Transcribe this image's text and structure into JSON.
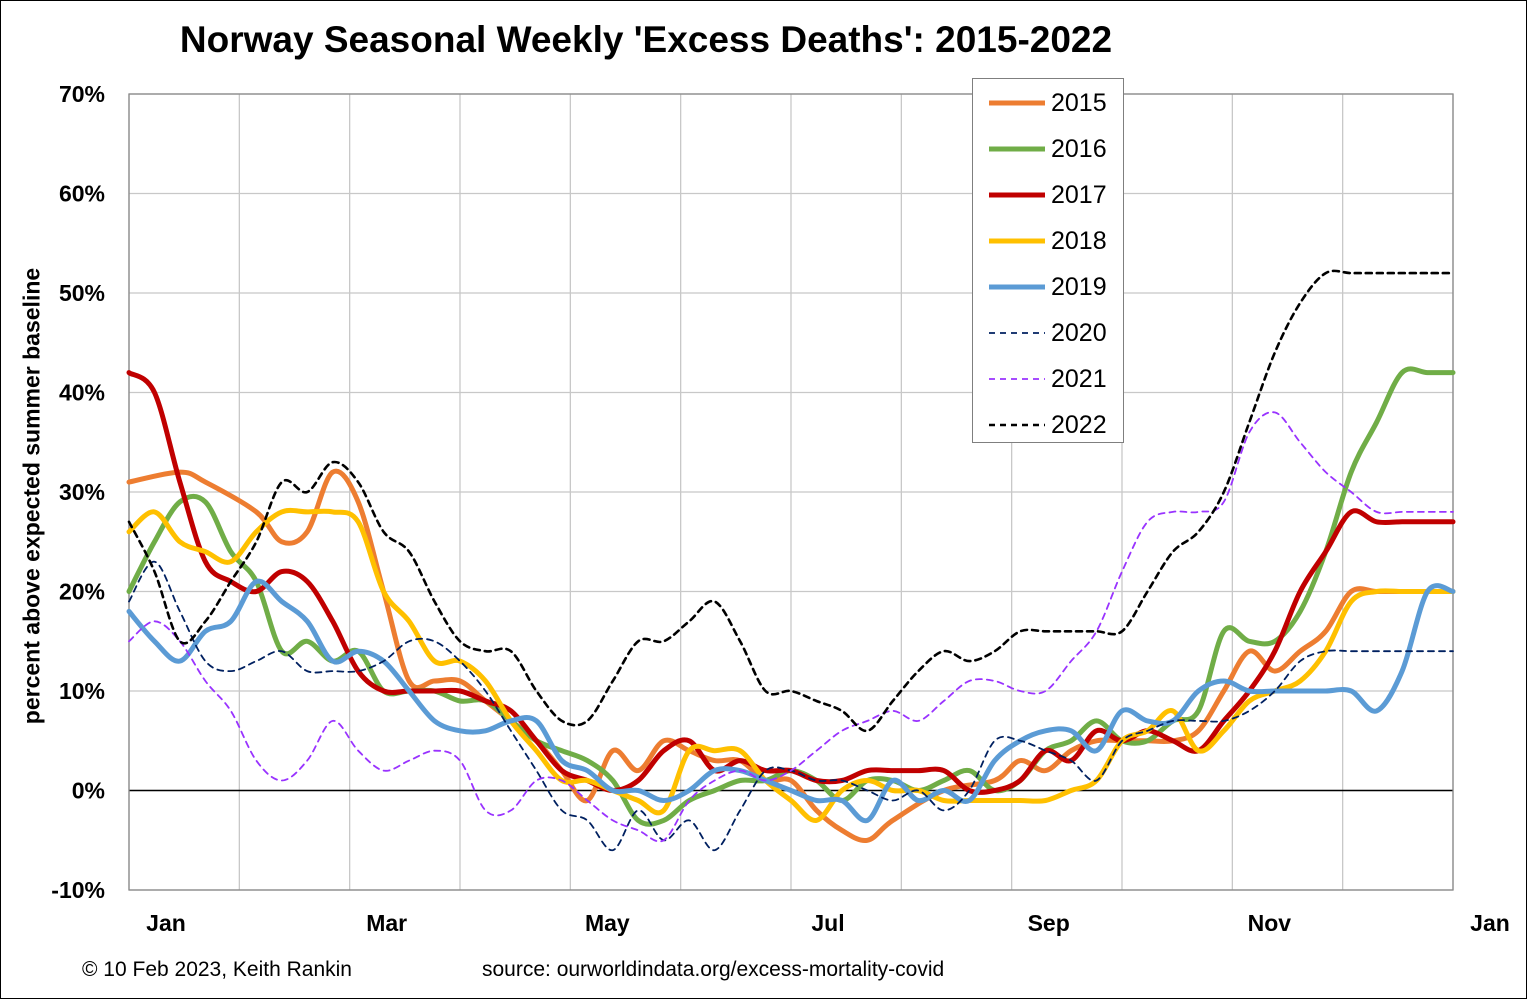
{
  "chart_data": {
    "type": "line",
    "title": "Norway Seasonal Weekly 'Excess Deaths': 2015-2022",
    "xlabel": "",
    "ylabel": "percent above expected summer baseline",
    "x_ticks": [
      "Jan",
      "Mar",
      "May",
      "Jul",
      "Sep",
      "Nov",
      "Jan"
    ],
    "x_unit": "week of year",
    "xlim": [
      1,
      53
    ],
    "ylim": [
      -10,
      70
    ],
    "y_ticks": [
      "-10%",
      "0%",
      "10%",
      "20%",
      "30%",
      "40%",
      "50%",
      "60%",
      "70%"
    ],
    "grid": true,
    "legend_position": "top-right",
    "series": [
      {
        "name": "2015",
        "color": "#ED7D31",
        "style": "solid",
        "x": [
          1,
          3,
          4,
          6,
          7,
          8,
          9,
          10,
          11,
          12,
          13,
          14,
          15,
          16,
          17,
          18,
          19,
          20,
          21,
          22,
          23,
          24,
          25,
          26,
          27,
          28,
          29,
          30,
          31,
          33,
          35,
          36,
          37,
          38,
          39,
          40,
          41,
          42,
          43,
          44,
          45,
          46,
          47,
          48,
          49,
          50,
          51,
          52,
          53
        ],
        "y": [
          31,
          32,
          31,
          28,
          25,
          26,
          32,
          29,
          20,
          11,
          11,
          11,
          9,
          7,
          5,
          2,
          -1,
          4,
          2,
          5,
          4,
          3,
          3,
          1,
          1,
          -2,
          -4,
          -5,
          -3,
          0,
          1,
          3,
          2,
          4,
          5,
          5,
          5,
          5,
          6,
          10,
          14,
          12,
          14,
          16,
          20,
          20,
          20,
          20,
          20
        ]
      },
      {
        "name": "2016",
        "color": "#70AD47",
        "style": "solid",
        "x": [
          1,
          2,
          3,
          4,
          5,
          6,
          7,
          8,
          9,
          10,
          11,
          12,
          13,
          14,
          15,
          16,
          17,
          18,
          19,
          20,
          21,
          22,
          23,
          24,
          25,
          26,
          27,
          28,
          29,
          30,
          31,
          32,
          33,
          34,
          35,
          36,
          37,
          38,
          39,
          40,
          41,
          42,
          43,
          44,
          45,
          46,
          47,
          48,
          49,
          50,
          51,
          52,
          53
        ],
        "y": [
          20,
          25,
          29,
          29,
          24,
          21,
          14,
          15,
          13,
          14,
          10,
          10,
          10,
          9,
          9,
          7,
          5,
          4,
          3,
          1,
          -3,
          -3,
          -1,
          0,
          1,
          1,
          2,
          1,
          -1,
          1,
          1,
          0,
          1,
          2,
          0,
          1,
          4,
          5,
          7,
          5,
          5,
          7,
          8,
          16,
          15,
          15,
          18,
          24,
          32,
          37,
          42,
          42,
          42
        ]
      },
      {
        "name": "2017",
        "color": "#C00000",
        "style": "solid",
        "x": [
          1,
          2,
          3,
          4,
          5,
          6,
          7,
          8,
          9,
          10,
          11,
          12,
          13,
          14,
          15,
          16,
          17,
          18,
          19,
          20,
          21,
          22,
          23,
          24,
          25,
          26,
          27,
          28,
          29,
          30,
          31,
          32,
          33,
          34,
          35,
          36,
          37,
          38,
          39,
          40,
          41,
          42,
          43,
          44,
          45,
          46,
          47,
          48,
          49,
          50,
          51,
          52,
          53
        ],
        "y": [
          42,
          40,
          31,
          23,
          21,
          20,
          22,
          21,
          17,
          12,
          10,
          10,
          10,
          10,
          9,
          8,
          5,
          2,
          1,
          0,
          1,
          4,
          5,
          2,
          3,
          2,
          2,
          1,
          1,
          2,
          2,
          2,
          2,
          0,
          0,
          1,
          4,
          3,
          6,
          5,
          6,
          5,
          4,
          7,
          10,
          14,
          20,
          24,
          28,
          27,
          27,
          27,
          27
        ]
      },
      {
        "name": "2018",
        "color": "#FFC000",
        "style": "solid",
        "x": [
          1,
          2,
          3,
          4,
          5,
          6,
          7,
          8,
          9,
          10,
          11,
          12,
          13,
          14,
          15,
          16,
          17,
          18,
          19,
          20,
          21,
          22,
          23,
          24,
          25,
          26,
          27,
          28,
          29,
          30,
          31,
          32,
          33,
          34,
          35,
          36,
          37,
          38,
          39,
          40,
          41,
          42,
          43,
          44,
          45,
          46,
          47,
          48,
          49,
          50,
          51,
          52,
          53
        ],
        "y": [
          26,
          28,
          25,
          24,
          23,
          26,
          28,
          28,
          28,
          27,
          20,
          17,
          13,
          13,
          11,
          7,
          4,
          1,
          1,
          0,
          -1,
          -2,
          4,
          4,
          4,
          1,
          -1,
          -3,
          0,
          1,
          0,
          0,
          -1,
          -1,
          -1,
          -1,
          -1,
          0,
          1,
          5,
          6,
          8,
          4,
          6,
          9,
          10,
          11,
          14,
          19,
          20,
          20,
          20,
          20
        ]
      },
      {
        "name": "2019",
        "color": "#5B9BD5",
        "style": "solid",
        "x": [
          1,
          2,
          3,
          4,
          5,
          6,
          7,
          8,
          9,
          10,
          11,
          12,
          13,
          14,
          15,
          16,
          17,
          18,
          19,
          20,
          21,
          22,
          23,
          24,
          25,
          26,
          27,
          28,
          29,
          30,
          31,
          32,
          33,
          34,
          35,
          36,
          37,
          38,
          39,
          40,
          41,
          42,
          43,
          44,
          45,
          46,
          47,
          48,
          49,
          50,
          51,
          52,
          53
        ],
        "y": [
          18,
          15,
          13,
          16,
          17,
          21,
          19,
          17,
          13,
          14,
          13,
          10,
          7,
          6,
          6,
          7,
          7,
          3,
          2,
          0,
          0,
          -1,
          0,
          2,
          2,
          1,
          0,
          -1,
          -1,
          -3,
          1,
          -1,
          0,
          -1,
          3,
          5,
          6,
          6,
          4,
          8,
          7,
          7,
          10,
          11,
          10,
          10,
          10,
          10,
          10,
          8,
          12,
          20,
          20
        ]
      },
      {
        "name": "2020",
        "color": "#002060",
        "style": "dashed",
        "x": [
          1,
          2,
          3,
          4,
          5,
          6,
          7,
          8,
          9,
          10,
          11,
          12,
          13,
          14,
          15,
          16,
          17,
          18,
          19,
          20,
          21,
          22,
          23,
          24,
          25,
          26,
          27,
          28,
          29,
          30,
          31,
          32,
          33,
          34,
          35,
          36,
          37,
          38,
          39,
          40,
          41,
          42,
          43,
          44,
          45,
          46,
          47,
          48,
          49,
          50,
          51,
          52,
          53
        ],
        "y": [
          19,
          23,
          18,
          13,
          12,
          13,
          14,
          12,
          12,
          12,
          13,
          15,
          15,
          13,
          10,
          6,
          2,
          -2,
          -3,
          -6,
          -2,
          -5,
          -3,
          -6,
          -2,
          2,
          2,
          1,
          1,
          0,
          -1,
          0,
          -2,
          0,
          5,
          5,
          4,
          3,
          1,
          5,
          6,
          7,
          7,
          7,
          8,
          10,
          13,
          14,
          14,
          14,
          14,
          14,
          14
        ]
      },
      {
        "name": "2021",
        "color": "#9933FF",
        "style": "dashed",
        "x": [
          1,
          2,
          3,
          4,
          5,
          6,
          7,
          8,
          9,
          10,
          11,
          12,
          13,
          14,
          15,
          16,
          17,
          18,
          19,
          20,
          21,
          22,
          23,
          24,
          25,
          26,
          27,
          28,
          29,
          30,
          31,
          32,
          33,
          34,
          35,
          36,
          37,
          38,
          39,
          40,
          41,
          42,
          43,
          44,
          45,
          46,
          47,
          48,
          49,
          50,
          51,
          52,
          53
        ],
        "y": [
          15,
          17,
          15,
          11,
          8,
          3,
          1,
          3,
          7,
          4,
          2,
          3,
          4,
          3,
          -2,
          -2,
          1,
          1,
          -1,
          -3,
          -4,
          -5,
          -1,
          1,
          2,
          1,
          2,
          4,
          6,
          7,
          8,
          7,
          9,
          11,
          11,
          10,
          10,
          13,
          16,
          22,
          27,
          28,
          28,
          29,
          36,
          38,
          35,
          32,
          30,
          28,
          28,
          28,
          28
        ]
      },
      {
        "name": "2022",
        "color": "#000000",
        "style": "dashed",
        "x": [
          1,
          2,
          3,
          4,
          5,
          6,
          7,
          8,
          9,
          10,
          11,
          12,
          13,
          14,
          15,
          16,
          17,
          18,
          19,
          20,
          21,
          22,
          23,
          24,
          25,
          26,
          27,
          28,
          29,
          30,
          31,
          32,
          33,
          34,
          35,
          36,
          37,
          38,
          39,
          40,
          41,
          42,
          43,
          44,
          45,
          46,
          47,
          48,
          49,
          50,
          51,
          52,
          53
        ],
        "y": [
          27,
          22,
          15,
          17,
          21,
          25,
          31,
          30,
          33,
          31,
          26,
          24,
          19,
          15,
          14,
          14,
          10,
          7,
          7,
          11,
          15,
          15,
          17,
          19,
          15,
          10,
          10,
          9,
          8,
          6,
          9,
          12,
          14,
          13,
          14,
          16,
          16,
          16,
          16,
          16,
          20,
          24,
          26,
          30,
          37,
          44,
          49,
          52,
          52,
          52,
          52,
          52,
          52
        ]
      }
    ]
  },
  "footer": {
    "copyright": "© 10 Feb 2023, Keith Rankin",
    "source": "source: ourworldindata.org/excess-mortality-covid"
  }
}
